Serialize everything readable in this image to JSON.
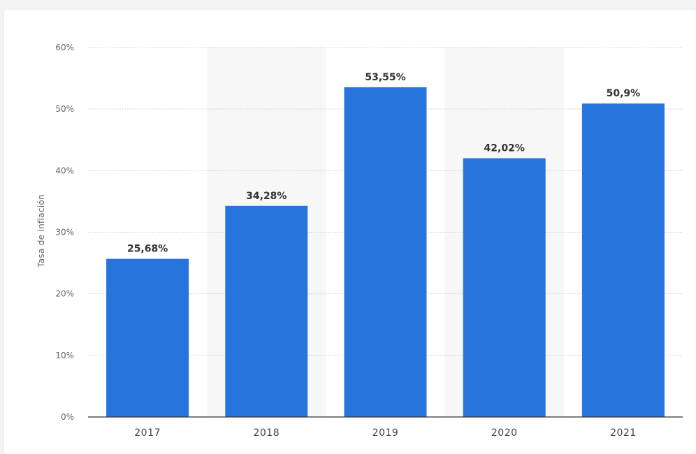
{
  "chart_data": {
    "type": "bar",
    "categories": [
      "2017",
      "2018",
      "2019",
      "2020",
      "2021"
    ],
    "values": [
      25.68,
      34.28,
      53.55,
      42.02,
      50.9
    ],
    "value_labels": [
      "25,68%",
      "34,28%",
      "53,55%",
      "42,02%",
      "50,9%"
    ],
    "ylabel": "Tasa de inflación",
    "xlabel": "",
    "ylim": [
      0,
      60
    ],
    "yticks": [
      0,
      10,
      20,
      30,
      40,
      50,
      60
    ],
    "ytick_labels": [
      "0%",
      "10%",
      "20%",
      "30%",
      "40%",
      "50%",
      "60%"
    ],
    "grid": true,
    "bar_color": "#2775dc",
    "alt_band_color": "#f7f7f8"
  }
}
